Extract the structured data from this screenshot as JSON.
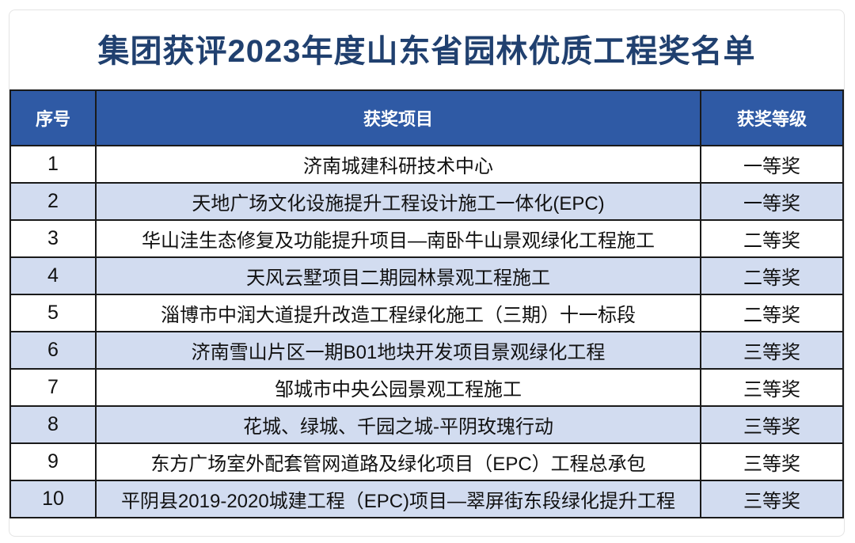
{
  "page": {
    "title": "集团获评2023年度山东省园林优质工程奖名单"
  },
  "colors": {
    "title_text": "#20406f",
    "header_bg": "#2f5aa5",
    "header_text": "#ffffff",
    "row_bg": "#ffffff",
    "row_alt_bg": "#d2dcf0",
    "grid_border": "#1a1a1a"
  },
  "table": {
    "columns": [
      {
        "key": "no",
        "label": "序号"
      },
      {
        "key": "project",
        "label": "获奖项目"
      },
      {
        "key": "level",
        "label": "获奖等级"
      }
    ],
    "rows": [
      {
        "no": "1",
        "project": "济南城建科研技术中心",
        "level": "一等奖"
      },
      {
        "no": "2",
        "project": "天地广场文化设施提升工程设计施工一体化(EPC)",
        "level": "一等奖"
      },
      {
        "no": "3",
        "project": "华山洼生态修复及功能提升项目—南卧牛山景观绿化工程施工",
        "level": "二等奖"
      },
      {
        "no": "4",
        "project": "天风云墅项目二期园林景观工程施工",
        "level": "二等奖"
      },
      {
        "no": "5",
        "project": "淄博市中润大道提升改造工程绿化施工（三期）十一标段",
        "level": "二等奖"
      },
      {
        "no": "6",
        "project": "济南雪山片区一期B01地块开发项目景观绿化工程",
        "level": "三等奖"
      },
      {
        "no": "7",
        "project": "邹城市中央公园景观工程施工",
        "level": "三等奖"
      },
      {
        "no": "8",
        "project": "花城、绿城、千园之城-平阴玫瑰行动",
        "level": "三等奖"
      },
      {
        "no": "9",
        "project": "东方广场室外配套管网道路及绿化项目（EPC）工程总承包",
        "level": "三等奖"
      },
      {
        "no": "10",
        "project": "平阴县2019-2020城建工程（EPC)项目—翠屏街东段绿化提升工程",
        "level": "三等奖"
      }
    ]
  }
}
